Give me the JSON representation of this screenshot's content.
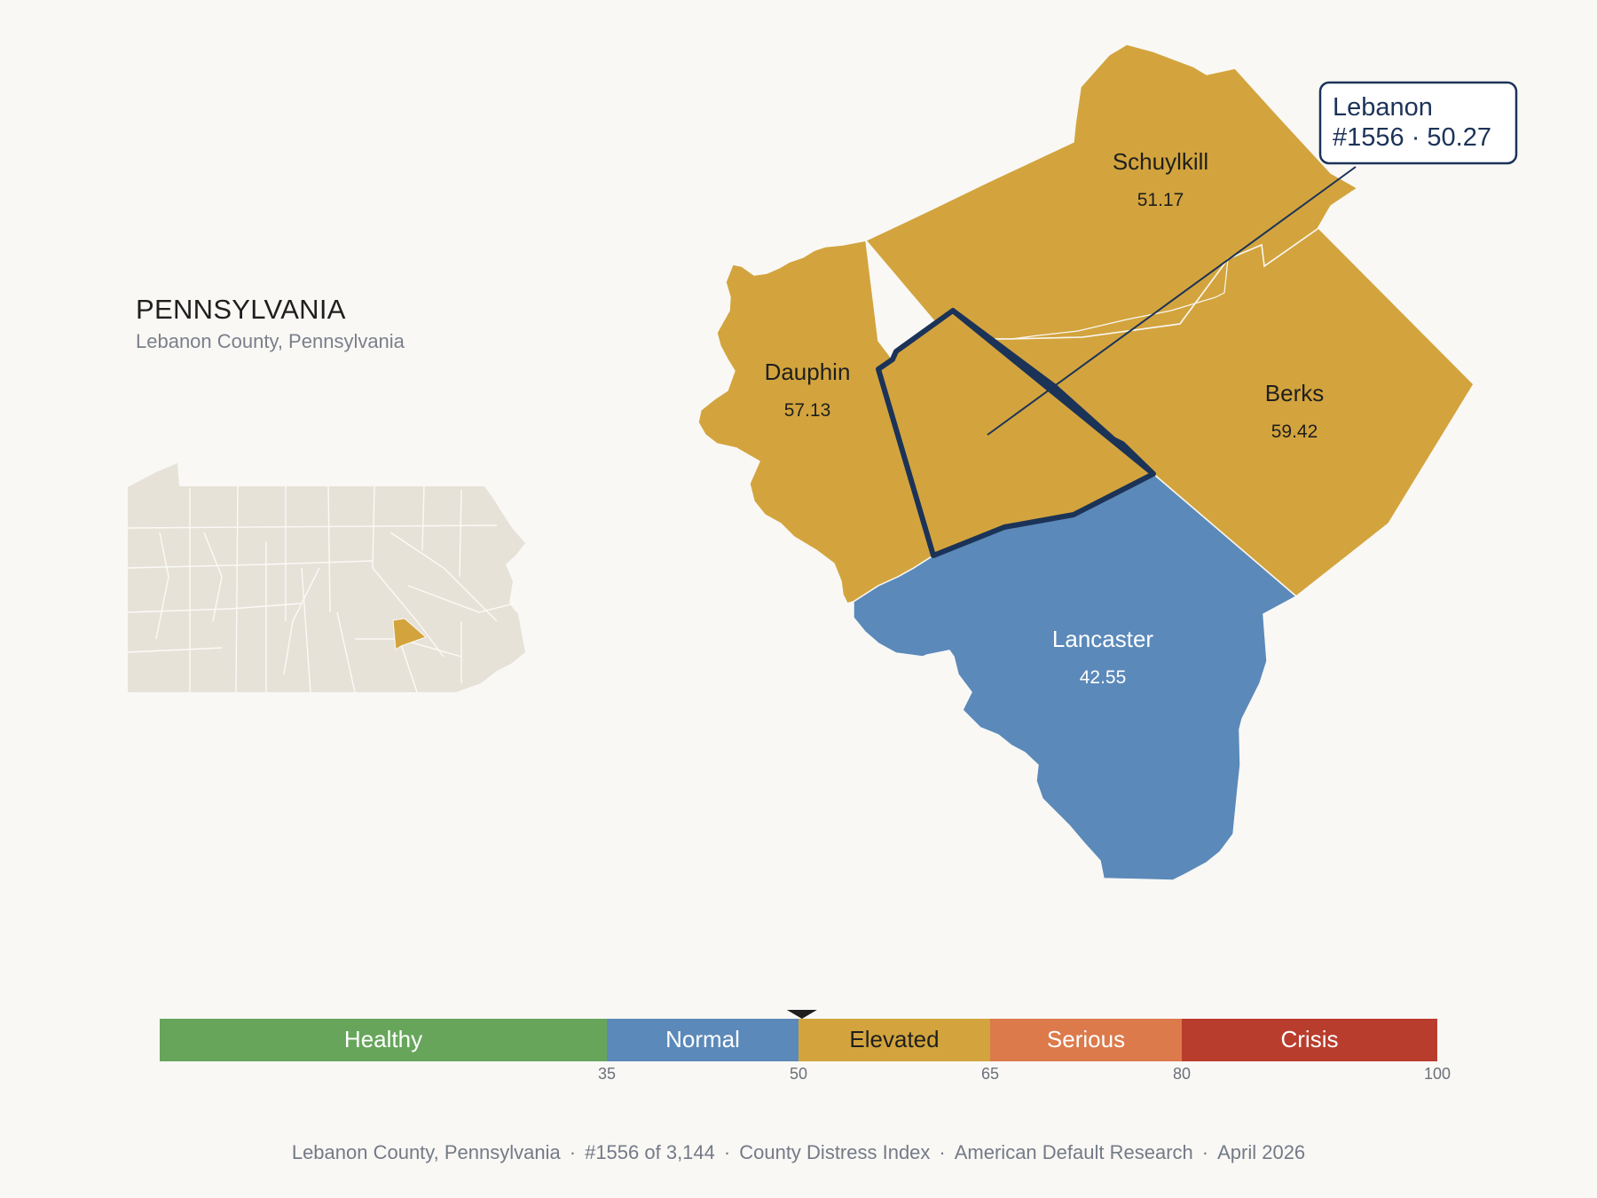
{
  "header": {
    "state": "PENNSYLVANIA",
    "subtitle": "Lebanon County, Pennsylvania"
  },
  "focus_county": {
    "name": "Lebanon",
    "callout": "#1556 · 50.27"
  },
  "counties": [
    {
      "name": "Schuylkill",
      "score": "51.17",
      "category": "Elevated"
    },
    {
      "name": "Dauphin",
      "score": "57.13",
      "category": "Elevated"
    },
    {
      "name": "Berks",
      "score": "59.42",
      "category": "Elevated"
    },
    {
      "name": "Lancaster",
      "score": "42.55",
      "category": "Normal"
    },
    {
      "name": "Lebanon",
      "score": "50.27",
      "category": "Elevated"
    }
  ],
  "scale": {
    "min": 0,
    "max": 100,
    "marker_value": 50.27,
    "bands": [
      {
        "label": "Healthy",
        "from": 0,
        "to": 35,
        "color": "#67a55b",
        "text_color": "#ffffff"
      },
      {
        "label": "Normal",
        "from": 35,
        "to": 50,
        "color": "#5b89b9",
        "text_color": "#ffffff"
      },
      {
        "label": "Elevated",
        "from": 50,
        "to": 65,
        "color": "#d3a43d",
        "text_color": "#1f1f1f"
      },
      {
        "label": "Serious",
        "from": 65,
        "to": 80,
        "color": "#dc7a4b",
        "text_color": "#ffffff"
      },
      {
        "label": "Crisis",
        "from": 80,
        "to": 100,
        "color": "#b93d2d",
        "text_color": "#ffffff"
      }
    ],
    "ticks": [
      "35",
      "50",
      "65",
      "80",
      "100"
    ]
  },
  "colors": {
    "elevated": "#d3a43d",
    "normal": "#5b89b9",
    "highlight_outline": "#1c3358",
    "inset_fill": "#e7e2d8"
  },
  "footer": {
    "county": "Lebanon County, Pennsylvania",
    "rank": "#1556 of 3,144",
    "index": "County Distress Index",
    "source": "American Default Research",
    "date": "April 2026"
  }
}
